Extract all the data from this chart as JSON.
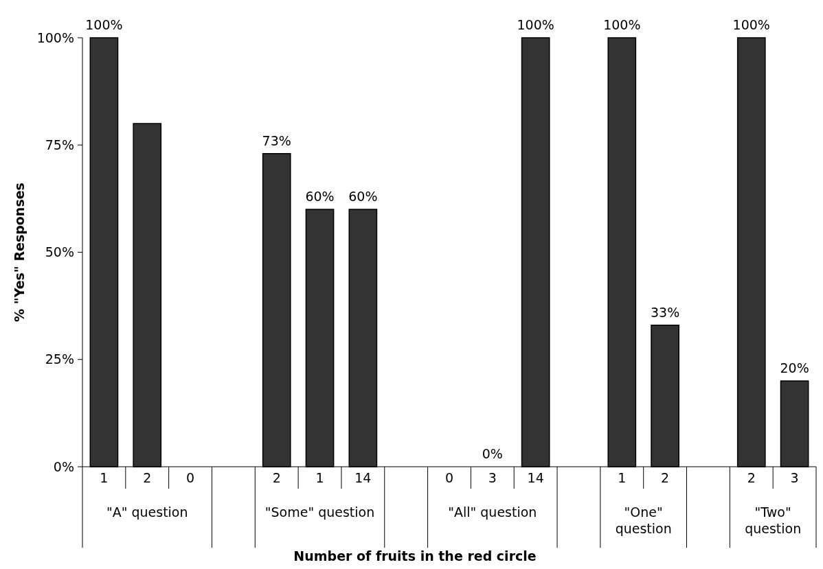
{
  "chart_data": {
    "type": "bar",
    "xlabel": "Number of fruits in the red circle",
    "ylabel": "% \"Yes\" Responses",
    "categories": [
      "1",
      "2",
      "0",
      null,
      "2",
      "1",
      "14",
      null,
      "0",
      "3",
      "14",
      null,
      "1",
      "2",
      null,
      "2",
      "3"
    ],
    "values": [
      100,
      80,
      null,
      null,
      73,
      60,
      60,
      null,
      null,
      0,
      100,
      null,
      100,
      33,
      null,
      100,
      20
    ],
    "value_labels": [
      "100%",
      null,
      null,
      null,
      "73%",
      "60%",
      "60%",
      null,
      null,
      "0%",
      "100%",
      null,
      "100%",
      "33%",
      null,
      "100%",
      "20%"
    ],
    "color": "#333333",
    "ylim": [
      0,
      100
    ],
    "yticks": [
      {
        "value": 0,
        "label": "0%"
      },
      {
        "value": 25,
        "label": "25%"
      },
      {
        "value": 50,
        "label": "50%"
      },
      {
        "value": 75,
        "label": "75%"
      },
      {
        "value": 100,
        "label": "100%"
      }
    ],
    "annotations": [
      "\"A\" question",
      "\"Some\" question",
      "\"All\" question",
      "\"One\" question",
      "\"Two\" question"
    ],
    "grid": false
  }
}
